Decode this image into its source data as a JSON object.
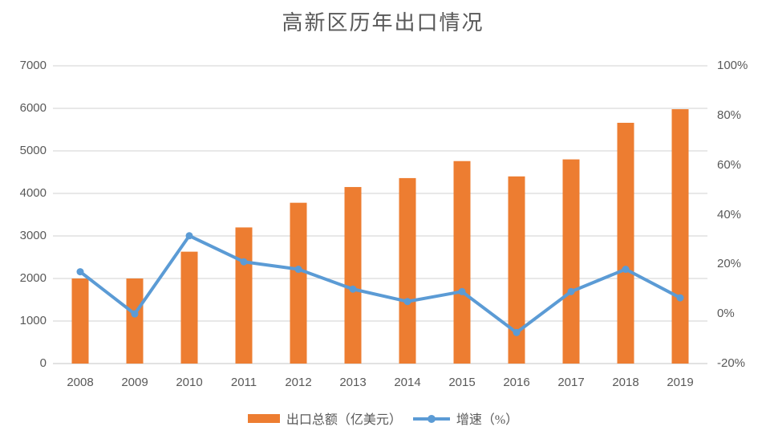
{
  "title": "高新区历年出口情况",
  "colors": {
    "bar": "#ED7D31",
    "line": "#5B9BD5",
    "grid": "#D9D9D9",
    "axis_line": "#D0D0D0",
    "text": "#595959",
    "background": "#FFFFFF"
  },
  "chart_data": {
    "type": "bar",
    "subtype": "bar-line-combo",
    "title": "高新区历年出口情况",
    "categories": [
      "2008",
      "2009",
      "2010",
      "2011",
      "2012",
      "2013",
      "2014",
      "2015",
      "2016",
      "2017",
      "2018",
      "2019"
    ],
    "series": [
      {
        "name": "出口总额（亿美元）",
        "type": "bar",
        "axis": "left",
        "color": "#ED7D31",
        "values": [
          2000,
          2000,
          2630,
          3200,
          3780,
          4150,
          4360,
          4760,
          4400,
          4800,
          5660,
          5980
        ]
      },
      {
        "name": "增速（%）",
        "type": "line",
        "axis": "right",
        "color": "#5B9BD5",
        "values": [
          17,
          0,
          31.5,
          21,
          18,
          10,
          5,
          9,
          -7.5,
          9,
          18,
          6.5
        ]
      }
    ],
    "left_axis": {
      "min": 0,
      "max": 7000,
      "step": 1000,
      "labels": [
        "0",
        "1000",
        "2000",
        "3000",
        "4000",
        "5000",
        "6000",
        "7000"
      ]
    },
    "right_axis": {
      "min": -20,
      "max": 100,
      "step": 20,
      "labels": [
        "-20%",
        "0%",
        "20%",
        "40%",
        "60%",
        "80%",
        "100%"
      ]
    },
    "grid": true,
    "legend_position": "bottom"
  },
  "legend": {
    "bar_label": "出口总额（亿美元）",
    "line_label": "增速（%）"
  }
}
